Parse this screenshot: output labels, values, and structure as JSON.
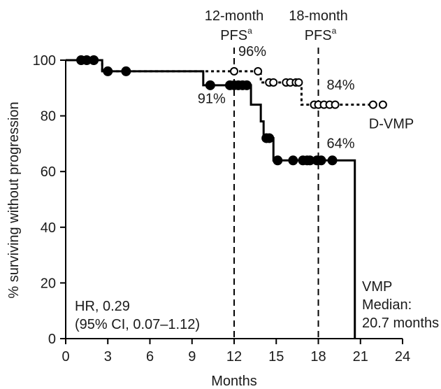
{
  "chart_data": {
    "type": "line",
    "xlabel": "Months",
    "ylabel": "% surviving without progression",
    "xlim": [
      0,
      24
    ],
    "ylim": [
      0,
      100
    ],
    "xticks": [
      "0",
      "3",
      "6",
      "9",
      "12",
      "15",
      "18",
      "21",
      "24"
    ],
    "yticks": [
      "0",
      "20",
      "40",
      "60",
      "80",
      "100"
    ],
    "grid": false,
    "series": [
      {
        "name": "D-VMP",
        "line_style": "dotted",
        "marker": "open-circle",
        "steps": [
          [
            0,
            100
          ],
          [
            2.6,
            100
          ],
          [
            2.6,
            96
          ],
          [
            13.9,
            96
          ],
          [
            13.9,
            92
          ],
          [
            16.8,
            92
          ],
          [
            16.8,
            84
          ],
          [
            22.8,
            84
          ]
        ],
        "censored": [
          [
            12.0,
            96
          ],
          [
            13.7,
            96
          ],
          [
            14.5,
            92
          ],
          [
            14.8,
            92
          ],
          [
            15.7,
            92
          ],
          [
            16.0,
            92
          ],
          [
            16.4,
            92
          ],
          [
            16.6,
            92
          ],
          [
            17.7,
            84
          ],
          [
            18.0,
            84
          ],
          [
            18.4,
            84
          ],
          [
            18.8,
            84
          ],
          [
            19.2,
            84
          ],
          [
            21.9,
            84
          ],
          [
            22.6,
            84
          ]
        ]
      },
      {
        "name": "VMP",
        "line_style": "solid",
        "marker": "filled-circle",
        "steps": [
          [
            0,
            100
          ],
          [
            2.6,
            100
          ],
          [
            2.6,
            96
          ],
          [
            9.8,
            96
          ],
          [
            9.8,
            91
          ],
          [
            13.2,
            91
          ],
          [
            13.2,
            84
          ],
          [
            13.9,
            84
          ],
          [
            13.9,
            78
          ],
          [
            14.1,
            78
          ],
          [
            14.1,
            72
          ],
          [
            14.8,
            72
          ],
          [
            14.8,
            64
          ],
          [
            20.6,
            64
          ],
          [
            20.6,
            0
          ]
        ],
        "censored": [
          [
            1.1,
            100
          ],
          [
            1.5,
            100
          ],
          [
            2.0,
            100
          ],
          [
            3.0,
            96
          ],
          [
            4.3,
            96
          ],
          [
            10.3,
            91
          ],
          [
            11.7,
            91
          ],
          [
            12.0,
            91
          ],
          [
            12.3,
            91
          ],
          [
            12.6,
            91
          ],
          [
            12.9,
            91
          ],
          [
            14.3,
            72
          ],
          [
            14.5,
            72
          ],
          [
            15.1,
            64
          ],
          [
            16.2,
            64
          ],
          [
            16.9,
            64
          ],
          [
            17.2,
            64
          ],
          [
            17.4,
            64
          ],
          [
            17.9,
            64
          ],
          [
            18.2,
            64
          ],
          [
            19.0,
            64
          ]
        ]
      }
    ],
    "reference_lines": [
      {
        "x": 12,
        "line1": "12-month",
        "line2": "PFS",
        "sup": "a"
      },
      {
        "x": 18,
        "line1": "18-month",
        "line2": "PFS",
        "sup": "a"
      }
    ],
    "annotations": [
      {
        "text": "96%",
        "x": 12.3,
        "y": 101.5
      },
      {
        "text": "91%",
        "x": 9.4,
        "y": 84.5
      },
      {
        "text": "84%",
        "x": 18.6,
        "y": 89.5
      },
      {
        "text": "64%",
        "x": 18.6,
        "y": 68.5
      },
      {
        "text": "D-VMP",
        "x": 21.6,
        "y": 75.5
      }
    ],
    "hr_text": [
      "HR, 0.29",
      "(95% CI, 0.07–1.12)"
    ],
    "vmp_label": [
      "VMP",
      "Median:",
      "20.7 months"
    ]
  }
}
